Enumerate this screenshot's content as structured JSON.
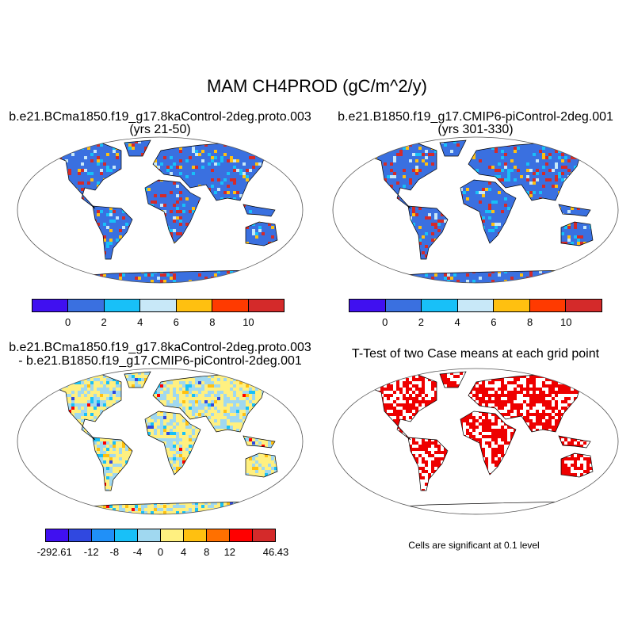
{
  "title": "MAM CH4PROD (gC/m^2/y)",
  "panels": [
    {
      "title_line1": "b.e21.BCma1850.f19_g17.8kaControl-2deg.proto.003",
      "title_line2": "(yrs 21-50)",
      "style": "case"
    },
    {
      "title_line1": "b.e21.B1850.f19_g17.CMIP6-piControl-2deg.001",
      "title_line2": "(yrs 301-330)",
      "style": "case"
    },
    {
      "title_line1": "b.e21.BCma1850.f19_g17.8kaControl-2deg.proto.003",
      "title_line2": "- b.e21.B1850.f19_g17.CMIP6-piControl-2deg.001",
      "style": "diff"
    },
    {
      "title_line1": "T-Test of two Case means at each grid point",
      "style": "ttest"
    }
  ],
  "colorbar_case": {
    "colors": [
      "#4010f0",
      "#3a70e0",
      "#18c0f8",
      "#c8e8f8",
      "#ffc010",
      "#ff3a00",
      "#d42a2a"
    ],
    "labels": [
      "0",
      "2",
      "4",
      "6",
      "8",
      "10"
    ]
  },
  "colorbar_diff": {
    "colors": [
      "#4010f0",
      "#3048e0",
      "#2090f8",
      "#18c0f8",
      "#a0d8f0",
      "#fff080",
      "#ffc010",
      "#ff7000",
      "#ff0000",
      "#d42a2a"
    ],
    "labels": [
      "-292.61",
      "-12",
      "-8",
      "-4",
      "0",
      "4",
      "8",
      "12",
      "46.43"
    ]
  },
  "ttest_note": "Cells are significant at 0.1 level",
  "ttest_color": "#ee0000"
}
